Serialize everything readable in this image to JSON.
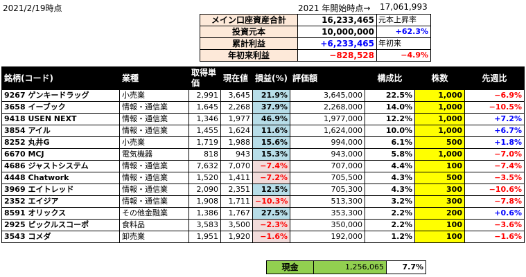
{
  "header": {
    "date": "2021/2/19時点",
    "start_label": "2021 年開始時点→",
    "start_value": "17,061,993"
  },
  "summary": {
    "rows": [
      {
        "label": "メイン口座資産合計",
        "value": "16,233,465",
        "note": "元本上昇率",
        "note_class": ""
      },
      {
        "label": "投資元本",
        "value": "10,000,000",
        "note": "+62.3%",
        "note_class": "pos r"
      },
      {
        "label": "累計利益",
        "value": "+6,233,465",
        "note": "年初来",
        "note_class": ""
      },
      {
        "label": "年初来利益",
        "value": "−828,528",
        "note": "−4.9%",
        "note_class": "neg r"
      }
    ],
    "value_classes": [
      "",
      "",
      "pos",
      "neg"
    ]
  },
  "table": {
    "headers": [
      "銘柄(コード)",
      "業種",
      "取得単価",
      "現在値",
      "損益(%)",
      "評価額",
      "構成比",
      "株数",
      "先週比"
    ],
    "rows": [
      {
        "name": "9267 ゲンキードラッグ",
        "sector": "小売業",
        "cost": "2,991",
        "price": "3,645",
        "pl": "21.9%",
        "pl_neg": false,
        "value": "3,645,000",
        "ratio": "22.5%",
        "shares": "1,000",
        "wow": "−6.9%",
        "wow_neg": true
      },
      {
        "name": "3658 イーブック",
        "sector": "情報・通信業",
        "cost": "1,645",
        "price": "2,268",
        "pl": "37.9%",
        "pl_neg": false,
        "value": "2,268,000",
        "ratio": "14.0%",
        "shares": "1,000",
        "wow": "−10.5%",
        "wow_neg": true
      },
      {
        "name": "9418 USEN NEXT",
        "sector": "情報・通信業",
        "cost": "1,346",
        "price": "1,977",
        "pl": "46.9%",
        "pl_neg": false,
        "value": "1,977,000",
        "ratio": "12.2%",
        "shares": "1,000",
        "wow": "+7.2%",
        "wow_neg": false
      },
      {
        "name": "3854 アイル",
        "sector": "情報・通信業",
        "cost": "1,455",
        "price": "1,624",
        "pl": "11.6%",
        "pl_neg": false,
        "value": "1,624,000",
        "ratio": "10.0%",
        "shares": "1,000",
        "wow": "+6.7%",
        "wow_neg": false
      },
      {
        "name": "8252 丸井G",
        "sector": "小売業",
        "cost": "1,719",
        "price": "1,988",
        "pl": "15.6%",
        "pl_neg": false,
        "value": "994,000",
        "ratio": "6.1%",
        "shares": "500",
        "wow": "+1.8%",
        "wow_neg": false
      },
      {
        "name": "6670 MCJ",
        "sector": "電気機器",
        "cost": "818",
        "price": "943",
        "pl": "15.3%",
        "pl_neg": false,
        "value": "943,000",
        "ratio": "5.8%",
        "shares": "1,000",
        "wow": "−7.0%",
        "wow_neg": true
      },
      {
        "name": "4686 ジャストシステム",
        "sector": "情報・通信業",
        "cost": "7,632",
        "price": "7,070",
        "pl": "−7.4%",
        "pl_neg": true,
        "value": "707,000",
        "ratio": "4.4%",
        "shares": "100",
        "wow": "−7.4%",
        "wow_neg": true
      },
      {
        "name": "4448 Chatwork",
        "sector": "情報・通信業",
        "cost": "1,520",
        "price": "1,411",
        "pl": "−7.2%",
        "pl_neg": true,
        "value": "705,500",
        "ratio": "4.3%",
        "shares": "500",
        "wow": "−3.5%",
        "wow_neg": true
      },
      {
        "name": "3969 エイトレッド",
        "sector": "情報・通信業",
        "cost": "2,090",
        "price": "2,351",
        "pl": "12.5%",
        "pl_neg": false,
        "value": "705,300",
        "ratio": "4.3%",
        "shares": "300",
        "wow": "−10.6%",
        "wow_neg": true
      },
      {
        "name": "2352 エイジア",
        "sector": "情報・通信業",
        "cost": "1,908",
        "price": "1,711",
        "pl": "−10.3%",
        "pl_neg": true,
        "value": "513,300",
        "ratio": "3.2%",
        "shares": "300",
        "wow": "−7.8%",
        "wow_neg": true
      },
      {
        "name": "8591 オリックス",
        "sector": "その他金融業",
        "cost": "1,386",
        "price": "1,767",
        "pl": "27.5%",
        "pl_neg": false,
        "value": "353,300",
        "ratio": "2.2%",
        "shares": "200",
        "wow": "+0.6%",
        "wow_neg": false
      },
      {
        "name": "2925 ピックルスコーポ",
        "sector": "食料品",
        "cost": "3,583",
        "price": "3,500",
        "pl": "−2.3%",
        "pl_neg": true,
        "value": "350,000",
        "ratio": "2.2%",
        "shares": "100",
        "wow": "−3.6%",
        "wow_neg": true
      },
      {
        "name": "3543 コメダ",
        "sector": "卸売業",
        "cost": "1,951",
        "price": "1,920",
        "pl": "−1.6%",
        "pl_neg": true,
        "value": "192,000",
        "ratio": "1.2%",
        "shares": "100",
        "wow": "−1.6%",
        "wow_neg": true
      }
    ]
  },
  "cash": {
    "label": "現金",
    "value": "1,256,065",
    "ratio": "7.7%"
  },
  "colors": {
    "profit_cell": "#b7dde8",
    "loss_cell": "#f2dcdb",
    "shares_cell": "#ffff00",
    "cash_cell": "#92d050",
    "summary_label": "#fde9d9",
    "negative": "#ff0000",
    "positive": "#0000ff"
  }
}
